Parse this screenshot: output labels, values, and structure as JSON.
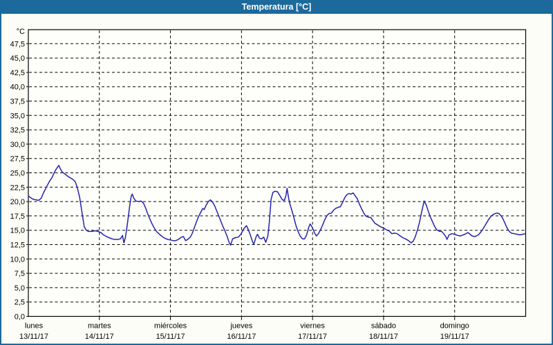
{
  "window": {
    "title": "Temperatura [°C]"
  },
  "colors": {
    "accent": "#1C699C",
    "titlebar_bg": "#1C699C",
    "title_text": "#FFFFFF",
    "page_bg": "#FCFDF6",
    "plot_bg": "#FEFEFA",
    "frame": "#000000",
    "grid": "#000000",
    "line": "#2222AC",
    "text": "#000000"
  },
  "y_axis": {
    "unit": "°C",
    "tick_labels": [
      "0,0",
      "2,5",
      "5,0",
      "7,5",
      "10,0",
      "12,5",
      "15,0",
      "17,5",
      "20,0",
      "22,5",
      "25,0",
      "27,5",
      "30,0",
      "32,5",
      "35,0",
      "37,5",
      "40,0",
      "42,5",
      "45,0",
      "47,5"
    ]
  },
  "x_axis": {
    "days": [
      {
        "name": "lunes",
        "date": "13/11/17"
      },
      {
        "name": "martes",
        "date": "14/11/17"
      },
      {
        "name": "miércoles",
        "date": "15/11/17"
      },
      {
        "name": "jueves",
        "date": "16/11/17"
      },
      {
        "name": "viernes",
        "date": "17/11/17"
      },
      {
        "name": "sábado",
        "date": "18/11/17"
      },
      {
        "name": "domingo",
        "date": "19/11/17"
      }
    ]
  },
  "chart_data": {
    "type": "line",
    "title": "Temperatura [°C]",
    "ylabel": "°C",
    "ylim": [
      0,
      47.5
    ],
    "ytick_step": 2.5,
    "x_hours_range": [
      0,
      168
    ],
    "grid": true,
    "legend": false,
    "series": [
      {
        "name": "Temperatura [°C]",
        "color": "#2222AC",
        "points_hour_temp": [
          [
            0,
            21
          ],
          [
            0.7,
            20.7
          ],
          [
            1.6,
            20.4
          ],
          [
            2.6,
            20.3
          ],
          [
            3.5,
            20.2
          ],
          [
            4.4,
            20.6
          ],
          [
            5.1,
            21.5
          ],
          [
            6.1,
            22.5
          ],
          [
            7,
            23.4
          ],
          [
            8,
            24.2
          ],
          [
            8.9,
            25.2
          ],
          [
            9.6,
            25.8
          ],
          [
            10.3,
            26.3
          ],
          [
            10.8,
            25.7
          ],
          [
            11.5,
            25.1
          ],
          [
            12.4,
            24.8
          ],
          [
            13.3,
            24.4
          ],
          [
            14.3,
            24.1
          ],
          [
            15.2,
            23.8
          ],
          [
            15.9,
            23.4
          ],
          [
            16.6,
            22.3
          ],
          [
            17.3,
            20.8
          ],
          [
            18,
            18.5
          ],
          [
            18.5,
            16.9
          ],
          [
            18.9,
            15.6
          ],
          [
            19.6,
            15
          ],
          [
            20.3,
            14.8
          ],
          [
            21.5,
            14.8
          ],
          [
            22.5,
            14.9
          ],
          [
            23.5,
            14.8
          ],
          [
            24.5,
            14.6
          ],
          [
            25.4,
            14.2
          ],
          [
            26.4,
            13.9
          ],
          [
            27.3,
            13.7
          ],
          [
            28.3,
            13.5
          ],
          [
            29.2,
            13.4
          ],
          [
            30.1,
            13.4
          ],
          [
            31.1,
            13.5
          ],
          [
            31.8,
            14.1
          ],
          [
            32.3,
            12.8
          ],
          [
            32.8,
            13.8
          ],
          [
            33.3,
            15.5
          ],
          [
            33.8,
            17.5
          ],
          [
            34.3,
            19.5
          ],
          [
            34.8,
            21
          ],
          [
            35.1,
            21.3
          ],
          [
            35.6,
            20.6
          ],
          [
            36.3,
            20.1
          ],
          [
            37.2,
            20
          ],
          [
            38.1,
            20.1
          ],
          [
            38.9,
            19.7
          ],
          [
            39.6,
            18.9
          ],
          [
            40.3,
            17.9
          ],
          [
            41,
            17
          ],
          [
            41.7,
            16.2
          ],
          [
            42.4,
            15.5
          ],
          [
            43.3,
            14.8
          ],
          [
            44.3,
            14.3
          ],
          [
            45.2,
            13.9
          ],
          [
            46.1,
            13.6
          ],
          [
            47.1,
            13.4
          ],
          [
            48,
            13.3
          ],
          [
            48.9,
            13.2
          ],
          [
            49.8,
            13.2
          ],
          [
            50.7,
            13.4
          ],
          [
            51.7,
            13.8
          ],
          [
            52.4,
            13.9
          ],
          [
            53.1,
            13.2
          ],
          [
            53.8,
            13.4
          ],
          [
            54.7,
            13.8
          ],
          [
            55.4,
            14.5
          ],
          [
            56.1,
            15.5
          ],
          [
            56.8,
            16.5
          ],
          [
            57.5,
            17.4
          ],
          [
            58.2,
            18.1
          ],
          [
            58.9,
            18.8
          ],
          [
            59.4,
            18.6
          ],
          [
            60.1,
            19.4
          ],
          [
            60.8,
            20
          ],
          [
            61.5,
            20.3
          ],
          [
            62.2,
            19.9
          ],
          [
            62.9,
            19.3
          ],
          [
            63.6,
            18.4
          ],
          [
            64.3,
            17.5
          ],
          [
            65,
            16.6
          ],
          [
            65.7,
            15.7
          ],
          [
            66.4,
            14.9
          ],
          [
            67.1,
            14
          ],
          [
            67.8,
            12.9
          ],
          [
            68.3,
            12.4
          ],
          [
            69,
            13.5
          ],
          [
            69.9,
            13.7
          ],
          [
            70.9,
            13.8
          ],
          [
            71.8,
            14.3
          ],
          [
            72.7,
            15.2
          ],
          [
            73.7,
            15.8
          ],
          [
            74.4,
            15
          ],
          [
            75.1,
            14
          ],
          [
            75.8,
            12.9
          ],
          [
            76.2,
            12.6
          ],
          [
            76.9,
            13.8
          ],
          [
            77.4,
            14.3
          ],
          [
            78.1,
            13.6
          ],
          [
            78.8,
            13.5
          ],
          [
            79.5,
            13.8
          ],
          [
            80.2,
            12.9
          ],
          [
            80.9,
            14
          ],
          [
            81.4,
            16.4
          ],
          [
            82,
            20.4
          ],
          [
            82.6,
            21.6
          ],
          [
            83.3,
            21.8
          ],
          [
            84.2,
            21.7
          ],
          [
            85,
            21
          ],
          [
            85.8,
            20.3
          ],
          [
            86.5,
            20.2
          ],
          [
            87,
            21
          ],
          [
            87.4,
            22.3
          ],
          [
            87.9,
            20.6
          ],
          [
            88.4,
            19.5
          ],
          [
            89.1,
            18.3
          ],
          [
            89.8,
            17
          ],
          [
            90.4,
            15.8
          ],
          [
            91.1,
            14.8
          ],
          [
            91.8,
            14
          ],
          [
            92.6,
            13.5
          ],
          [
            93.3,
            13.5
          ],
          [
            94,
            14.2
          ],
          [
            94.7,
            15.5
          ],
          [
            95.2,
            16.1
          ],
          [
            95.9,
            15.5
          ],
          [
            96.6,
            14.6
          ],
          [
            97.3,
            14
          ],
          [
            98,
            14.4
          ],
          [
            98.7,
            15.1
          ],
          [
            99.4,
            15.9
          ],
          [
            100.1,
            16.8
          ],
          [
            100.8,
            17.5
          ],
          [
            101.5,
            17.9
          ],
          [
            102.4,
            18
          ],
          [
            103.1,
            18.5
          ],
          [
            103.8,
            18.8
          ],
          [
            104.7,
            19
          ],
          [
            105.4,
            19.1
          ],
          [
            106.2,
            19.9
          ],
          [
            106.9,
            20.7
          ],
          [
            107.6,
            21.2
          ],
          [
            108.3,
            21.4
          ],
          [
            109,
            21.3
          ],
          [
            109.7,
            21.5
          ],
          [
            110.4,
            21
          ],
          [
            111.1,
            20.5
          ],
          [
            111.8,
            19.6
          ],
          [
            112.5,
            18.8
          ],
          [
            113.2,
            18.1
          ],
          [
            113.9,
            17.5
          ],
          [
            114.8,
            17.3
          ],
          [
            115.7,
            17.2
          ],
          [
            116.4,
            16.7
          ],
          [
            117.1,
            16.2
          ],
          [
            118.1,
            15.9
          ],
          [
            119,
            15.6
          ],
          [
            119.9,
            15.4
          ],
          [
            120.9,
            15.1
          ],
          [
            121.8,
            14.9
          ],
          [
            122.8,
            14.4
          ],
          [
            123.7,
            14.5
          ],
          [
            124.6,
            14.4
          ],
          [
            125.6,
            14
          ],
          [
            126.5,
            13.7
          ],
          [
            127.4,
            13.5
          ],
          [
            128.4,
            13.2
          ],
          [
            129.3,
            12.8
          ],
          [
            130,
            13.1
          ],
          [
            130.7,
            13.9
          ],
          [
            131.4,
            15
          ],
          [
            132.1,
            16.3
          ],
          [
            132.8,
            18
          ],
          [
            133.3,
            19.2
          ],
          [
            133.7,
            20.1
          ],
          [
            134.4,
            19.4
          ],
          [
            135.1,
            18.3
          ],
          [
            135.8,
            17.3
          ],
          [
            136.5,
            16.5
          ],
          [
            137.2,
            15.7
          ],
          [
            137.9,
            15.1
          ],
          [
            138.9,
            14.8
          ],
          [
            139.6,
            14.8
          ],
          [
            140.3,
            14.4
          ],
          [
            141,
            13.9
          ],
          [
            141.4,
            13.4
          ],
          [
            142.1,
            14.2
          ],
          [
            143.1,
            14.4
          ],
          [
            144,
            14.3
          ],
          [
            145,
            14.1
          ],
          [
            145.9,
            14
          ],
          [
            146.9,
            14.2
          ],
          [
            147.8,
            14.4
          ],
          [
            148.5,
            14.6
          ],
          [
            149.2,
            14.3
          ],
          [
            149.9,
            14
          ],
          [
            150.6,
            13.9
          ],
          [
            151.3,
            14
          ],
          [
            152,
            14.2
          ],
          [
            152.7,
            14.6
          ],
          [
            153.4,
            15.1
          ],
          [
            154.1,
            15.7
          ],
          [
            154.8,
            16.3
          ],
          [
            155.5,
            16.9
          ],
          [
            156.2,
            17.4
          ],
          [
            156.9,
            17.7
          ],
          [
            157.6,
            17.9
          ],
          [
            158.3,
            18
          ],
          [
            159,
            17.9
          ],
          [
            159.7,
            17.5
          ],
          [
            160.4,
            16.9
          ],
          [
            161.1,
            16.1
          ],
          [
            161.8,
            15.3
          ],
          [
            162.5,
            14.8
          ],
          [
            163.2,
            14.5
          ],
          [
            164.1,
            14.4
          ],
          [
            165.1,
            14.3
          ],
          [
            166,
            14.2
          ],
          [
            167,
            14.3
          ],
          [
            167.9,
            14.4
          ]
        ]
      }
    ]
  }
}
